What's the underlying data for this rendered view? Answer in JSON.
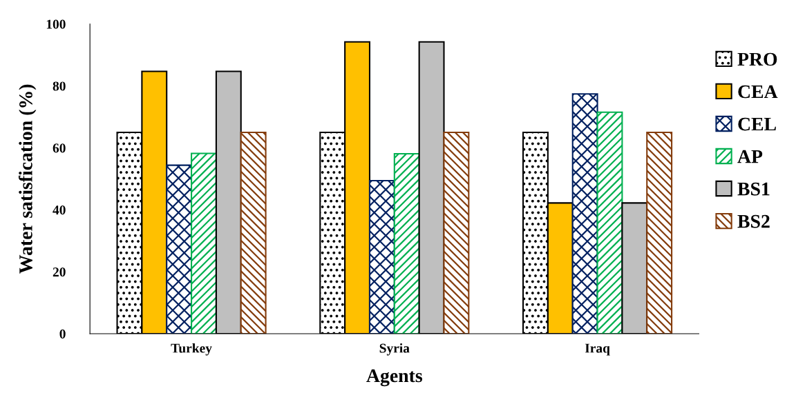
{
  "chart_data": {
    "type": "bar",
    "xlabel": "Agents",
    "ylabel": "Water satisfication (%)",
    "categories": [
      "Turkey",
      "Syria",
      "Iraq"
    ],
    "series": [
      {
        "name": "PRO",
        "color": "#000000",
        "values": [
          65,
          65,
          65
        ]
      },
      {
        "name": "CEA",
        "color": "#ffc000",
        "values": [
          84.7,
          94.2,
          42.2
        ]
      },
      {
        "name": "CEL",
        "color": "#002060",
        "values": [
          54.4,
          49.4,
          77.4
        ]
      },
      {
        "name": "AP",
        "color": "#00b050",
        "values": [
          58.2,
          58.1,
          71.5
        ]
      },
      {
        "name": "BS1",
        "color": "#bfbfbf",
        "values": [
          84.7,
          94.2,
          42.2
        ]
      },
      {
        "name": "BS2",
        "color": "#843c0c",
        "values": [
          65,
          65,
          65
        ]
      }
    ],
    "ylim": [
      0,
      100
    ],
    "yticks": [
      0,
      20,
      40,
      60,
      80,
      100
    ],
    "grid": false,
    "legend": "right"
  }
}
